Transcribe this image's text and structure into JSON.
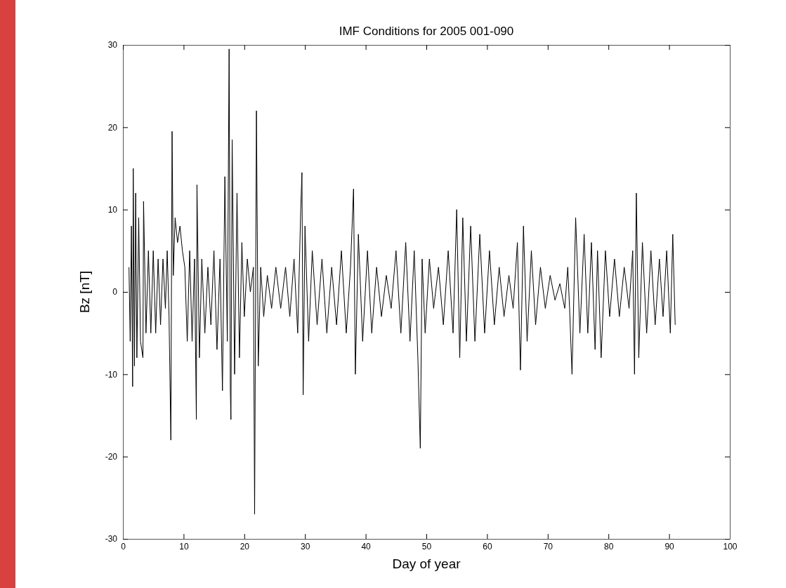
{
  "chart_data": {
    "type": "line",
    "title": "IMF Conditions for 2005 001-090",
    "xlabel": "Day of year",
    "ylabel": "Bz [nT]",
    "x": [
      1,
      1.2,
      1.4,
      1.6,
      1.7,
      1.9,
      2.1,
      2.3,
      2.6,
      2.9,
      3.3,
      3.4,
      3.8,
      4.2,
      4.6,
      5,
      5.4,
      5.8,
      6.2,
      6.6,
      7,
      7.3,
      7.6,
      7.9,
      8.1,
      8.3,
      8.6,
      9,
      9.4,
      9.8,
      10.2,
      10.6,
      11,
      11.4,
      11.8,
      12.1,
      12.2,
      12.6,
      13,
      13.5,
      14,
      14.5,
      15,
      15.5,
      16,
      16.4,
      16.8,
      17.2,
      17.5,
      17.7,
      17.8,
      18,
      18.4,
      18.8,
      19.2,
      19.6,
      20,
      20.5,
      21,
      21.5,
      21.7,
      22,
      22.3,
      22.7,
      23.2,
      23.8,
      24.5,
      25.2,
      26,
      26.8,
      27.5,
      28.2,
      28.8,
      29.3,
      29.5,
      29.7,
      30,
      30.6,
      31.2,
      32,
      32.8,
      33.6,
      34.4,
      35.2,
      36,
      36.8,
      37.5,
      38,
      38.3,
      38.8,
      39.5,
      40.3,
      41,
      41.8,
      42.6,
      43.4,
      44.2,
      45,
      45.8,
      46.6,
      47.3,
      48,
      48.6,
      49,
      49.3,
      49.8,
      50.5,
      51.2,
      52,
      52.8,
      53.6,
      54.4,
      55,
      55.5,
      56,
      56.6,
      57.3,
      58,
      58.8,
      59.6,
      60.4,
      61.2,
      62,
      62.8,
      63.6,
      64.3,
      65,
      65.5,
      66,
      66.6,
      67.3,
      68,
      68.8,
      69.6,
      70.4,
      71.2,
      72,
      72.8,
      73.3,
      73.6,
      74,
      74.6,
      75.3,
      76,
      76.6,
      77.2,
      77.8,
      78.2,
      78.8,
      79.5,
      80.2,
      81,
      81.8,
      82.6,
      83.4,
      84,
      84.3,
      84.6,
      85,
      85.6,
      86.3,
      87,
      87.7,
      88.4,
      89,
      89.6,
      90.2,
      90.6,
      91
    ],
    "series": [
      {
        "color": "#000000",
        "values": [
          3,
          -6,
          8,
          -11.5,
          15,
          -9,
          12,
          -8,
          9,
          -6,
          -8,
          11,
          -5,
          5,
          -5,
          5,
          -5,
          4,
          -4,
          4,
          -2,
          5,
          -3,
          -18,
          19.5,
          2,
          9,
          6,
          8,
          5,
          3,
          -6,
          5,
          -6,
          4,
          -15.5,
          13,
          -8,
          4,
          -5,
          3,
          -4,
          5,
          -7,
          4,
          -12,
          14,
          -6,
          29.5,
          -12,
          -15.5,
          18.5,
          -10,
          12,
          -8,
          6,
          -3,
          4,
          0,
          3,
          -27,
          22,
          -9,
          3,
          -3,
          2,
          -2,
          3,
          -2,
          3,
          -3,
          4,
          -5,
          10,
          14.5,
          -12.5,
          8,
          -6,
          5,
          -4,
          4,
          -5,
          3,
          -4,
          5,
          -5,
          3,
          12.5,
          -10,
          7,
          -6,
          5,
          -5,
          3,
          -3,
          2,
          -2,
          5,
          -5,
          6,
          -6,
          5,
          -8,
          -19,
          4,
          -5,
          4,
          -2,
          3,
          -4,
          5,
          -5,
          10,
          -8,
          9,
          -6,
          8,
          -6,
          7,
          -5,
          5,
          -4,
          3,
          -3,
          2,
          -2,
          6,
          -9.5,
          8,
          -6,
          5,
          -4,
          3,
          -2,
          2,
          -1,
          1,
          -2,
          3,
          -2,
          -10,
          9,
          -5,
          7,
          -5,
          6,
          -7,
          5,
          -8,
          5,
          -3,
          4,
          -3,
          3,
          -2,
          5,
          -10,
          12,
          -8,
          6,
          -5,
          5,
          -4,
          4,
          -3,
          5,
          -5,
          7,
          -4
        ]
      }
    ],
    "xlim": [
      0,
      100
    ],
    "xticks": [
      0,
      10,
      20,
      30,
      40,
      50,
      60,
      70,
      80,
      90,
      100
    ],
    "ylim": [
      -30,
      30
    ],
    "yticks": [
      -30,
      -20,
      -10,
      0,
      10,
      20,
      30
    ],
    "grid": false
  }
}
